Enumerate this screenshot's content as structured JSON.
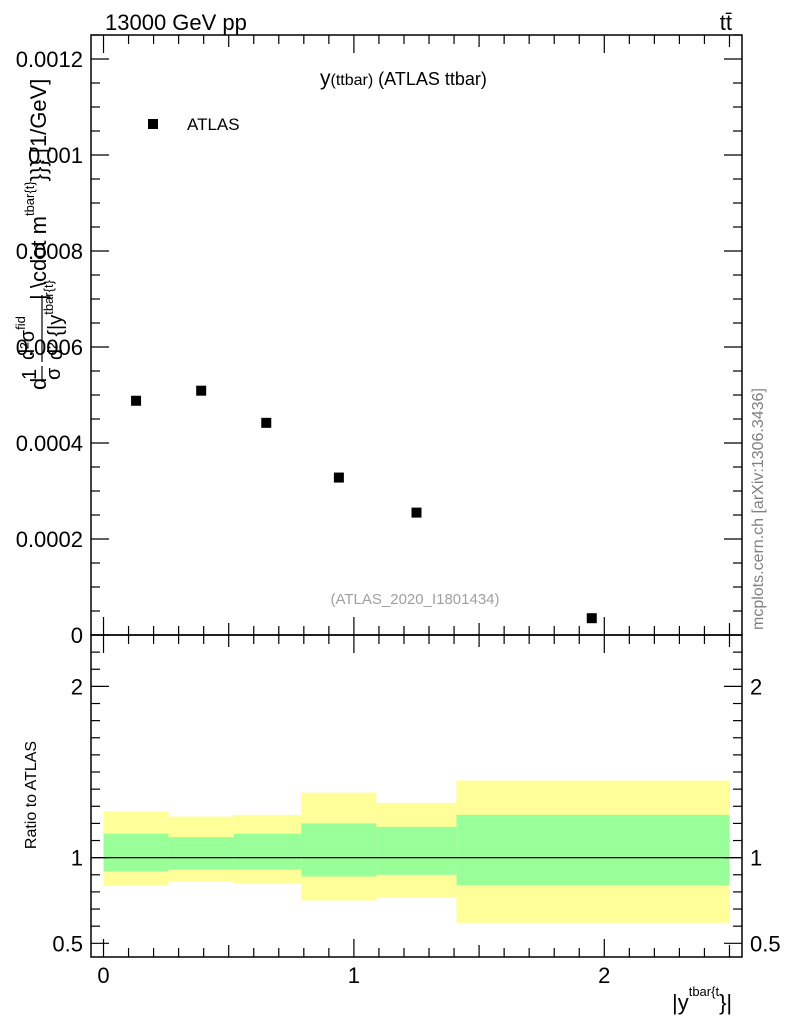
{
  "header": {
    "energy_label": "13000 GeV pp",
    "process_label": "tt̄"
  },
  "side_credit": "mcplots.cern.ch [arXiv:1306.3436]",
  "chart_data": [
    {
      "type": "scatter",
      "panel": "main",
      "title": "y(ttbar) (ATLAS ttbar)",
      "title_main": "y",
      "title_paren": "(ttbar)",
      "title_rest": " (ATLAS ttbar)",
      "analysis_label": "(ATLAS_2020_I1801434)",
      "ylabel": "d1/σ d²σ^fid/d² {|y^tbar{t}| \\cdot m^tbar{t}}} [1/GeV]",
      "ylabel_parts": {
        "prefix": "d",
        "frac1_num": "1",
        "frac1_den": "σ",
        "frac2_num": "d²σ",
        "frac2_sup": "fid",
        "frac2_den": "d² {|y",
        "frac2_den_sup": "tbar{t}",
        "tail": "| \\cdot m",
        "tail_sup": "tbar{t}",
        "end": "}}} [1/GeV]"
      },
      "ylim": [
        0,
        0.00125
      ],
      "y_ticks": [
        {
          "value": 0,
          "label": "0"
        },
        {
          "value": 0.0002,
          "label": "0.0002"
        },
        {
          "value": 0.0004,
          "label": "0.0004"
        },
        {
          "value": 0.0006,
          "label": "0.0006"
        },
        {
          "value": 0.0008,
          "label": "0.0008"
        },
        {
          "value": 0.001,
          "label": "0.001"
        },
        {
          "value": 0.0012,
          "label": "0.0012"
        }
      ],
      "legend_position": "top-left",
      "series": [
        {
          "name": "ATLAS",
          "color": "#000000",
          "marker": "square",
          "points": [
            {
              "x": 0.13,
              "y": 0.000488
            },
            {
              "x": 0.39,
              "y": 0.000509
            },
            {
              "x": 0.65,
              "y": 0.000442
            },
            {
              "x": 0.94,
              "y": 0.000328
            },
            {
              "x": 1.25,
              "y": 0.000255
            },
            {
              "x": 1.95,
              "y": 3.5e-05
            }
          ]
        }
      ]
    },
    {
      "type": "area",
      "panel": "ratio",
      "ylabel": "Ratio to ATLAS",
      "xlabel": "|y^tbar{t}}|",
      "xlabel_parts": {
        "main": "|y",
        "sup": "tbar{t",
        "end": "}|"
      },
      "xlim": [
        -0.05,
        2.55
      ],
      "ylim": [
        0.42,
        2.3
      ],
      "x_ticks": [
        {
          "value": 0,
          "label": "0"
        },
        {
          "value": 1,
          "label": "1"
        },
        {
          "value": 2,
          "label": "2"
        }
      ],
      "y_ticks": [
        {
          "value": 0.5,
          "label": "0.5"
        },
        {
          "value": 1,
          "label": "1"
        },
        {
          "value": 2,
          "label": "2"
        }
      ],
      "reference_line": 1,
      "band_colors": {
        "outer": "#ffff99",
        "inner": "#99ff99"
      },
      "bins": [
        {
          "x_lo": 0.0,
          "x_hi": 0.26,
          "inner": [
            0.92,
            1.14
          ],
          "outer": [
            0.84,
            1.27
          ]
        },
        {
          "x_lo": 0.26,
          "x_hi": 0.52,
          "inner": [
            0.93,
            1.12
          ],
          "outer": [
            0.86,
            1.24
          ]
        },
        {
          "x_lo": 0.52,
          "x_hi": 0.79,
          "inner": [
            0.93,
            1.14
          ],
          "outer": [
            0.85,
            1.25
          ]
        },
        {
          "x_lo": 0.79,
          "x_hi": 1.09,
          "inner": [
            0.89,
            1.2
          ],
          "outer": [
            0.75,
            1.38
          ]
        },
        {
          "x_lo": 1.09,
          "x_hi": 1.41,
          "inner": [
            0.9,
            1.18
          ],
          "outer": [
            0.77,
            1.32
          ]
        },
        {
          "x_lo": 1.41,
          "x_hi": 2.5,
          "inner": [
            0.84,
            1.25
          ],
          "outer": [
            0.62,
            1.45
          ]
        }
      ]
    }
  ]
}
